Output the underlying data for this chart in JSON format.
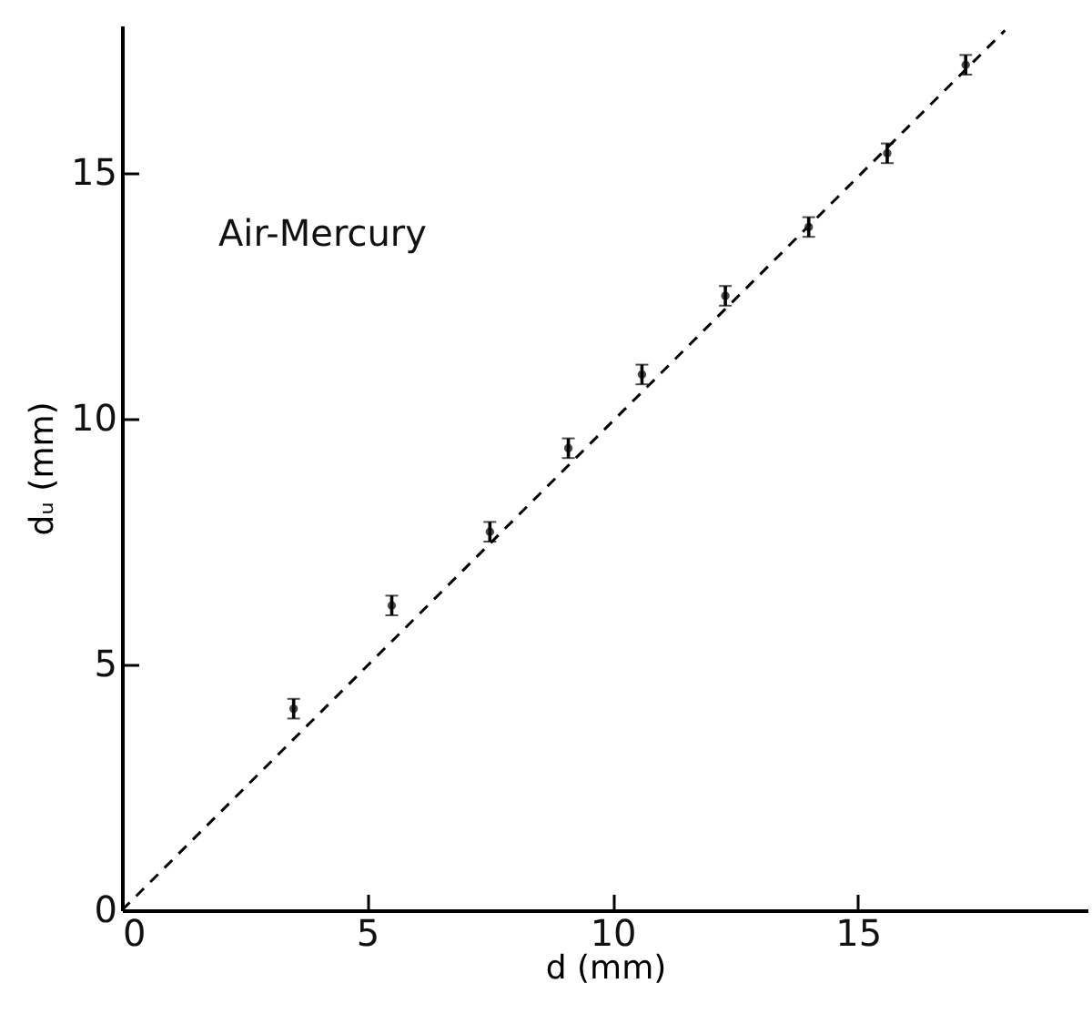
{
  "chart_data": {
    "type": "scatter",
    "xlabel": "d  (mm)",
    "ylabel": "dᵤ (mm)",
    "annotations": [
      "Air-Mercury"
    ],
    "xlim": [
      0,
      19.7
    ],
    "ylim": [
      0,
      18
    ],
    "xticks": [
      0,
      5,
      10,
      15
    ],
    "yticks": [
      0,
      5,
      10,
      15
    ],
    "grid": false,
    "series": [
      {
        "color": "#000000",
        "marker": "circle",
        "x": [
          3.5,
          5.5,
          7.5,
          9.1,
          10.6,
          12.3,
          14.0,
          15.6,
          17.2
        ],
        "values": [
          4.1,
          6.2,
          7.7,
          9.4,
          10.9,
          12.5,
          13.9,
          15.4,
          17.2
        ],
        "errors": [
          0.2,
          0.2,
          0.2,
          0.2,
          0.2,
          0.2,
          0.2,
          0.2,
          0.2
        ]
      },
      {
        "type": "line",
        "color": "#000000",
        "line_style": "dashed",
        "marker": "none",
        "x": [
          0,
          18
        ],
        "values": [
          0,
          17.9
        ]
      }
    ]
  }
}
